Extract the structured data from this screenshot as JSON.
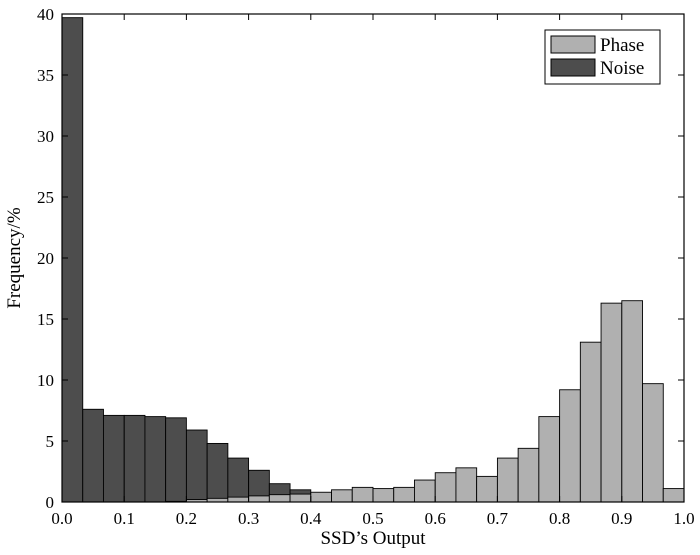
{
  "chart_data": {
    "type": "bar",
    "title": "",
    "xlabel": "SSD’s Output",
    "ylabel": "Frequency/%",
    "xlim": [
      0,
      1
    ],
    "ylim": [
      0,
      40
    ],
    "bin_width": 0.03333,
    "x": [
      0.0167,
      0.05,
      0.0833,
      0.1167,
      0.15,
      0.1833,
      0.2167,
      0.25,
      0.2833,
      0.3167,
      0.35,
      0.3833,
      0.4167,
      0.45,
      0.4833,
      0.5167,
      0.55,
      0.5833,
      0.6167,
      0.65,
      0.6833,
      0.7167,
      0.75,
      0.7833,
      0.8167,
      0.85,
      0.8833,
      0.9167,
      0.95,
      0.9833
    ],
    "xticks": [
      "0.0",
      "0.1",
      "0.2",
      "0.3",
      "0.4",
      "0.5",
      "0.6",
      "0.7",
      "0.8",
      "0.9",
      "1.0"
    ],
    "yticks": [
      "0",
      "5",
      "10",
      "15",
      "20",
      "25",
      "30",
      "35",
      "40"
    ],
    "grid": false,
    "legend_position": "top-right",
    "series": [
      {
        "name": "Phase",
        "color": "#b0b0b0",
        "values": [
          0,
          0,
          0,
          0,
          0,
          0.05,
          0.2,
          0.3,
          0.4,
          0.5,
          0.6,
          0.65,
          0.8,
          1.0,
          1.2,
          1.1,
          1.2,
          1.8,
          2.4,
          2.8,
          2.1,
          3.6,
          4.4,
          7.0,
          9.2,
          13.1,
          16.3,
          16.5,
          9.7,
          1.1
        ]
      },
      {
        "name": "Noise",
        "color": "#4d4d4d",
        "values": [
          39.7,
          7.6,
          7.1,
          7.1,
          7.0,
          6.9,
          5.9,
          4.8,
          3.6,
          2.6,
          1.5,
          1.0,
          0.7,
          0.8,
          0.5,
          0.4,
          0.3,
          0.3,
          0.2,
          0.2,
          0.2,
          0.2,
          0.15,
          0.1,
          0.1,
          0.1,
          0.05,
          0,
          0,
          0
        ]
      }
    ]
  }
}
